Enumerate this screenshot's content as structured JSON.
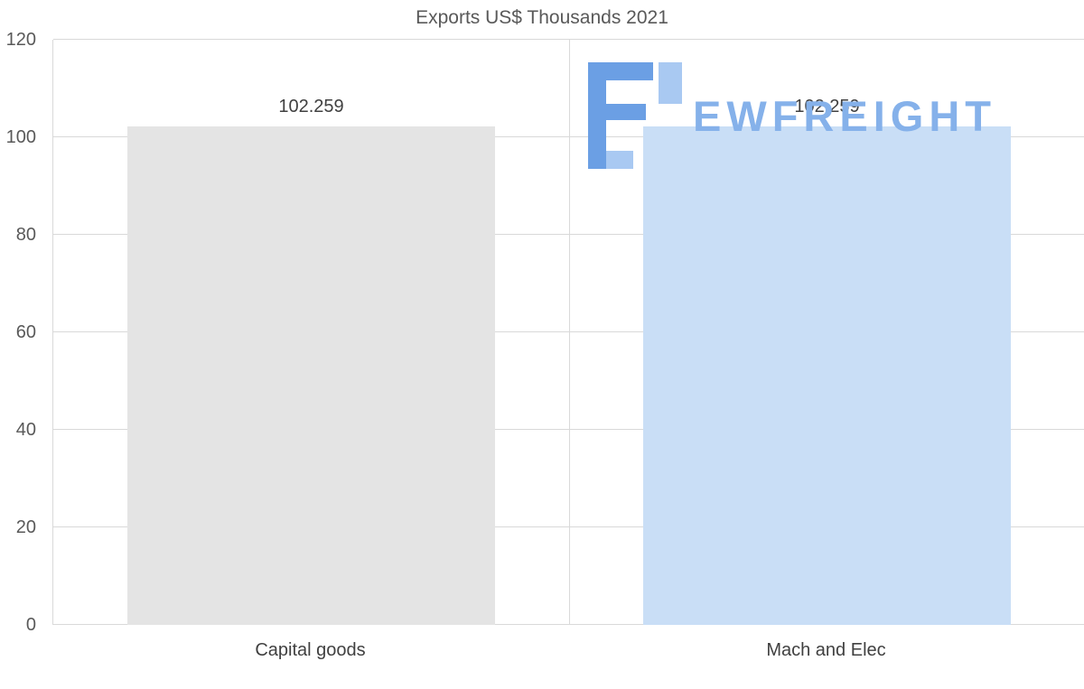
{
  "chart_data": {
    "type": "bar",
    "title": "Exports US$ Thousands 2021",
    "categories": [
      "Capital goods",
      "Mach and Elec"
    ],
    "values": [
      102.259,
      102.259
    ],
    "value_labels": [
      "102.259",
      "102.259"
    ],
    "bar_colors": [
      "#e4e4e4",
      "#c9def6"
    ],
    "ylim": [
      0,
      120
    ],
    "yticks": [
      0,
      20,
      40,
      60,
      80,
      100,
      120
    ],
    "grid": "horizontal",
    "legend": "none",
    "xlabel": "",
    "ylabel": ""
  },
  "watermark": {
    "text": "EWFREIGHT",
    "logo_icon": "ewfreight-logo-icon"
  },
  "colors": {
    "title": "#595959",
    "tick_label": "#595959",
    "gridline": "#d9d9d9",
    "value_label": "#404040",
    "category_label": "#404040",
    "watermark_text": "#85b1ea",
    "logo_dark": "#6b9fe4",
    "logo_light": "#a9c9f2"
  }
}
